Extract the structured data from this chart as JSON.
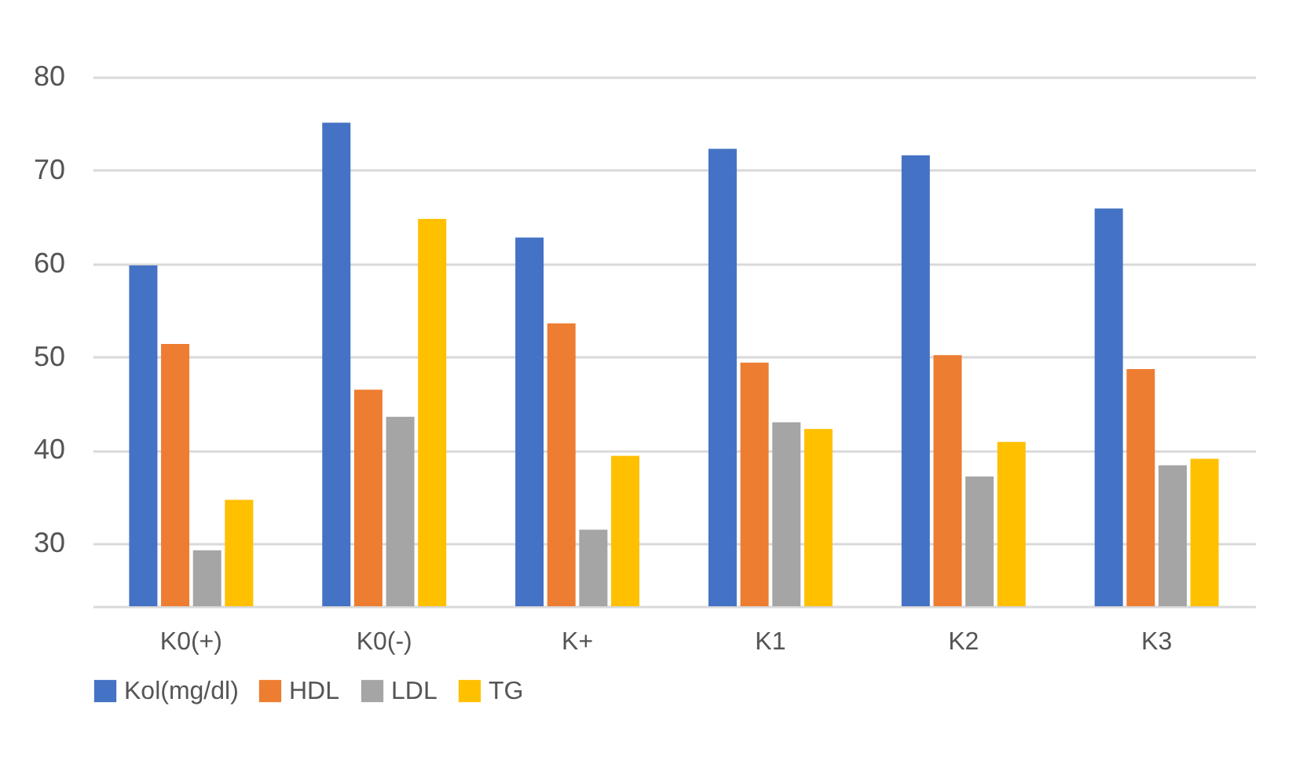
{
  "chart_data": {
    "type": "bar",
    "categories": [
      "K0(+)",
      "K0(-)",
      "K+",
      "K1",
      "K2",
      "K3"
    ],
    "series": [
      {
        "name": "Kol(mg/dl)",
        "color": "#4472c4",
        "values": [
          59.8,
          75.1,
          62.8,
          72.3,
          71.6,
          65.9
        ]
      },
      {
        "name": "HDL",
        "color": "#ed7d31",
        "values": [
          51.4,
          46.5,
          53.6,
          49.4,
          50.2,
          48.7
        ]
      },
      {
        "name": "LDL",
        "color": "#a5a5a5",
        "values": [
          29.3,
          43.6,
          31.5,
          43.0,
          37.2,
          38.4
        ]
      },
      {
        "name": "TG",
        "color": "#ffc000",
        "values": [
          34.7,
          64.8,
          39.4,
          42.3,
          40.9,
          39.1
        ]
      }
    ],
    "ylim": [
      23.3,
      80
    ],
    "yticks": [
      30,
      40,
      50,
      60,
      70,
      80
    ],
    "grid": "y",
    "legend": "bottom"
  }
}
